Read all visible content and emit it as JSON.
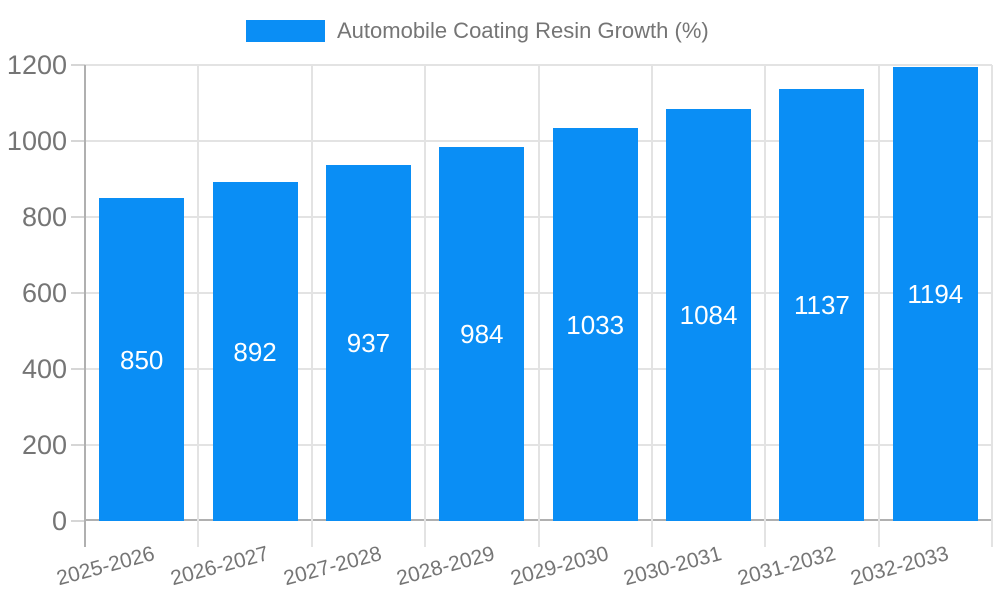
{
  "legend": {
    "label": "Automobile Coating Resin Growth (%)"
  },
  "chart_data": {
    "type": "bar",
    "title": "Automobile Coating Resin Growth (%)",
    "categories": [
      "2025-2026",
      "2026-2027",
      "2027-2028",
      "2028-2029",
      "2029-2030",
      "2030-2031",
      "2031-2032",
      "2032-2033"
    ],
    "values": [
      850,
      892,
      937,
      984,
      1033,
      1084,
      1137,
      1194
    ],
    "xlabel": "",
    "ylabel": "",
    "ylim": [
      0,
      1200
    ],
    "yticks": [
      0,
      200,
      400,
      600,
      800,
      1000,
      1200
    ],
    "grid": true,
    "legend_position": "top-center",
    "bar_labels_inside": true,
    "colors": {
      "bar": "#0a8ef5",
      "bar_label_text": "#ffffff",
      "grid_line": "#e3e3e3",
      "axis_line": "#b0b0b0",
      "tick_mark": "#d6d6d6",
      "tick_text": "#757575",
      "legend_text": "#757575",
      "background": "#ffffff"
    }
  }
}
